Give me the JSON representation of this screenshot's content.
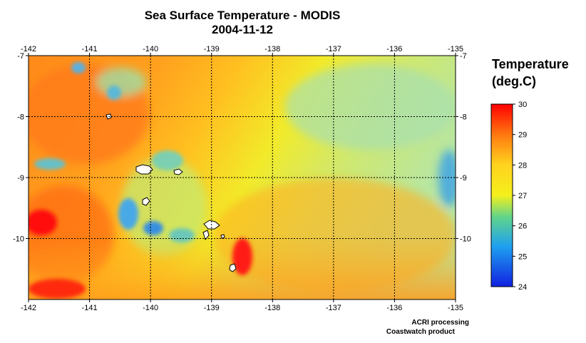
{
  "title": "Sea Surface Temperature - MODIS",
  "date": "2004-11-12",
  "legend": {
    "title_line1": "Temperature",
    "title_line2": "(deg.C)",
    "ticks": [
      "30",
      "29",
      "28",
      "27",
      "26",
      "25",
      "24"
    ],
    "min": 24,
    "max": 30,
    "colors": [
      "#ff0000",
      "#ff7a10",
      "#ffd21e",
      "#f4f01c",
      "#5fd48c",
      "#1ea0f0",
      "#1020e0"
    ]
  },
  "axes": {
    "x_ticks": [
      "-142",
      "-141",
      "-140",
      "-139",
      "-138",
      "-137",
      "-136",
      "-135"
    ],
    "y_ticks": [
      "-7",
      "-8",
      "-9",
      "-10"
    ],
    "lon_range": [
      -142,
      -135
    ],
    "lat_range": [
      -11,
      -7
    ],
    "grid": "on (dotted)"
  },
  "credits": {
    "line1": "ACRI processing",
    "line2": "Coastwatch product"
  }
}
